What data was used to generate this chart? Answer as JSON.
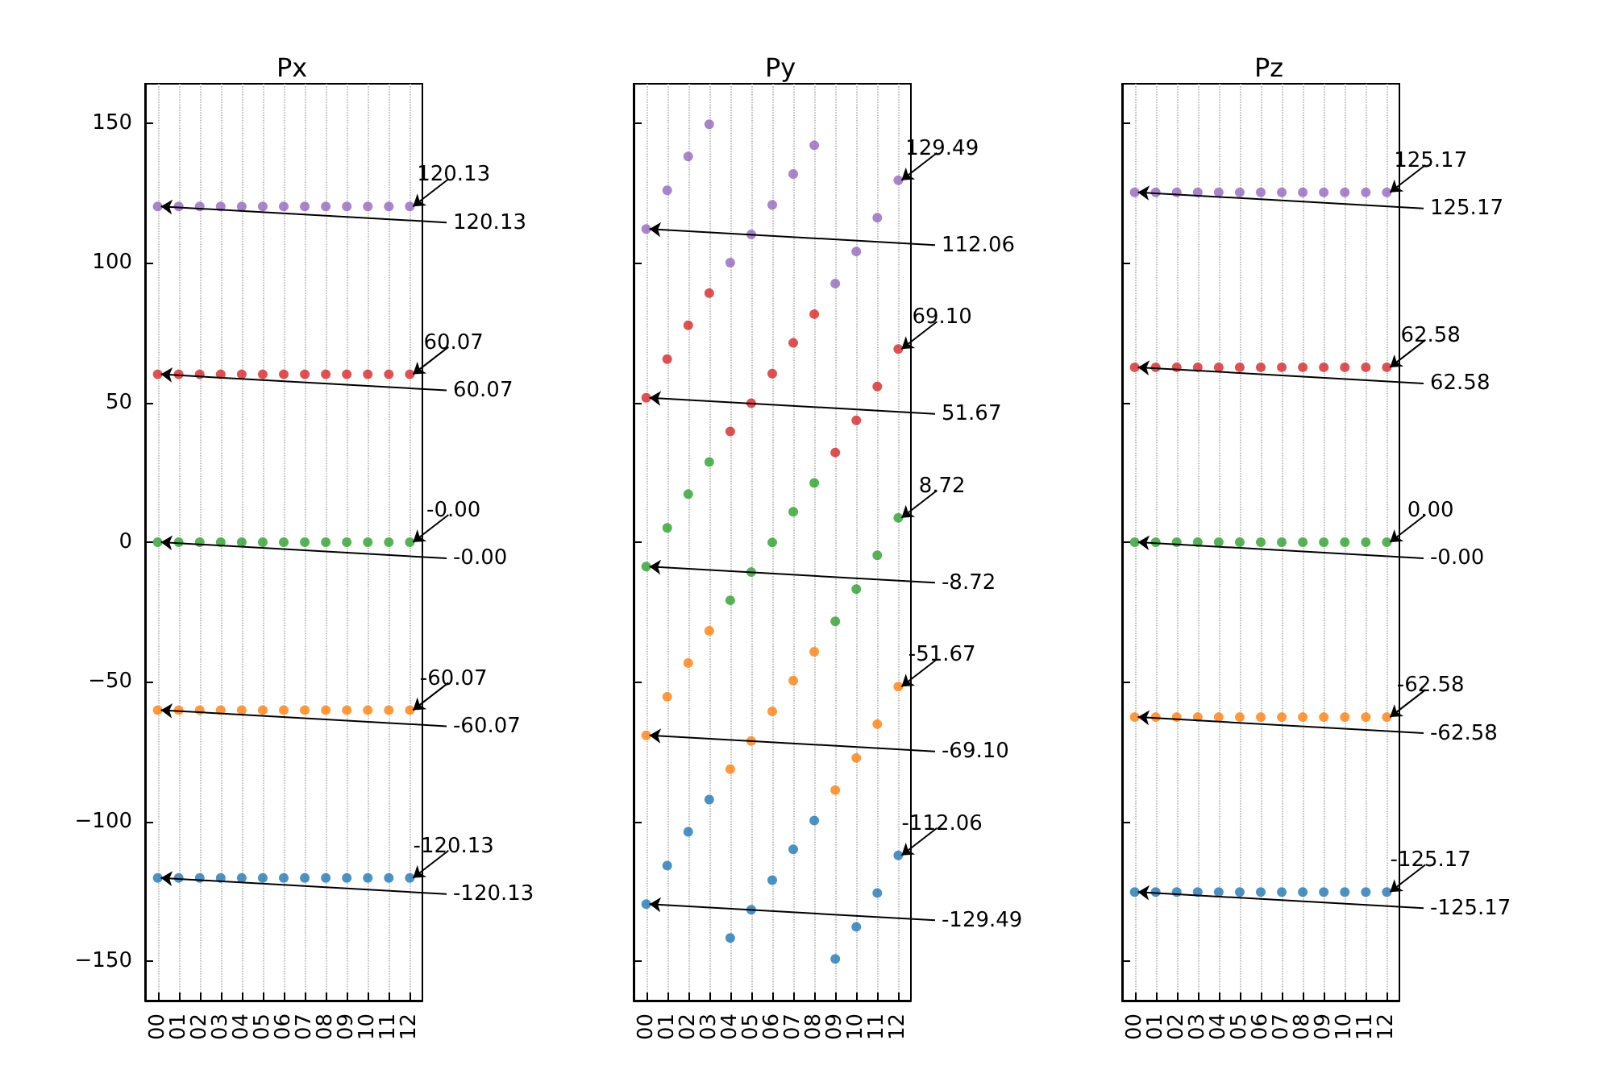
{
  "chart_data": [
    {
      "type": "scatter",
      "title": "Px",
      "categories": [
        "00",
        "01",
        "02",
        "03",
        "04",
        "05",
        "06",
        "07",
        "08",
        "09",
        "10",
        "11",
        "12"
      ],
      "ylim": [
        -164,
        164
      ],
      "yticks": [
        -150,
        -100,
        -50,
        0,
        50,
        100,
        150
      ],
      "grid": "x",
      "marker": "circle",
      "series": [
        {
          "color": "#1f77b4",
          "values": [
            -120.13,
            -120.13,
            -120.13,
            -120.13,
            -120.13,
            -120.13,
            -120.13,
            -120.13,
            -120.13,
            -120.13,
            -120.13,
            -120.13,
            -120.13
          ]
        },
        {
          "color": "#ff7f0e",
          "values": [
            -60.07,
            -60.07,
            -60.07,
            -60.07,
            -60.07,
            -60.07,
            -60.07,
            -60.07,
            -60.07,
            -60.07,
            -60.07,
            -60.07,
            -60.07
          ]
        },
        {
          "color": "#2ca02c",
          "values": [
            0,
            0,
            0,
            0,
            0,
            0,
            0,
            0,
            0,
            0,
            0,
            0,
            0
          ]
        },
        {
          "color": "#d62728",
          "values": [
            60.07,
            60.07,
            60.07,
            60.07,
            60.07,
            60.07,
            60.07,
            60.07,
            60.07,
            60.07,
            60.07,
            60.07,
            60.07
          ]
        },
        {
          "color": "#9467bd",
          "values": [
            120.13,
            120.13,
            120.13,
            120.13,
            120.13,
            120.13,
            120.13,
            120.13,
            120.13,
            120.13,
            120.13,
            120.13,
            120.13
          ]
        }
      ],
      "annotations": [
        {
          "text": "-120.13",
          "x": "12",
          "y": -120.13
        },
        {
          "text": "-120.13",
          "x": "00",
          "y": -120.13
        },
        {
          "text": "-60.07",
          "x": "12",
          "y": -60.07
        },
        {
          "text": "-60.07",
          "x": "00",
          "y": -60.07
        },
        {
          "text": "-0.00",
          "x": "12",
          "y": 0
        },
        {
          "text": "-0.00",
          "x": "00",
          "y": 0
        },
        {
          "text": "60.07",
          "x": "12",
          "y": 60.07
        },
        {
          "text": "60.07",
          "x": "00",
          "y": 60.07
        },
        {
          "text": "120.13",
          "x": "12",
          "y": 120.13
        },
        {
          "text": "120.13",
          "x": "00",
          "y": 120.13
        }
      ]
    },
    {
      "type": "scatter",
      "title": "Py",
      "categories": [
        "00",
        "01",
        "02",
        "03",
        "04",
        "05",
        "06",
        "07",
        "08",
        "09",
        "10",
        "11",
        "12"
      ],
      "ylim": [
        -164,
        164
      ],
      "yticks": [
        -150,
        -100,
        -50,
        0,
        50,
        100,
        150
      ],
      "grid": "x",
      "marker": "circle",
      "tick_labels": "x",
      "series": [
        {
          "color": "#1f77b4",
          "values": [
            -129.49,
            -115.7,
            -103.6,
            -92.1,
            -141.6,
            -131.5,
            -120.9,
            -109.9,
            -99.6,
            -149.1,
            -137.6,
            -125.5,
            -112.06
          ]
        },
        {
          "color": "#ff7f0e",
          "values": [
            -69.1,
            -55.3,
            -43.2,
            -31.7,
            -81.2,
            -71.1,
            -60.5,
            -49.5,
            -39.2,
            -88.7,
            -77.2,
            -65.1,
            -51.67
          ]
        },
        {
          "color": "#2ca02c",
          "values": [
            -8.72,
            5.1,
            17.2,
            28.7,
            -20.8,
            -10.7,
            -0.1,
            10.9,
            21.2,
            -28.3,
            -16.8,
            -4.7,
            8.72
          ]
        },
        {
          "color": "#d62728",
          "values": [
            51.67,
            65.5,
            77.6,
            89.1,
            39.6,
            49.7,
            60.3,
            71.3,
            81.6,
            32.1,
            43.6,
            55.7,
            69.1
          ]
        },
        {
          "color": "#9467bd",
          "values": [
            112.06,
            125.9,
            138.0,
            149.5,
            100.0,
            110.1,
            120.7,
            131.7,
            142.0,
            92.5,
            104.0,
            116.1,
            129.49
          ]
        }
      ],
      "annotations": [
        {
          "text": "-112.06",
          "x": "12",
          "y": -112.06
        },
        {
          "text": "-129.49",
          "x": "00",
          "y": -129.49
        },
        {
          "text": "-51.67",
          "x": "12",
          "y": -51.67
        },
        {
          "text": "-69.10",
          "x": "00",
          "y": -69.1
        },
        {
          "text": "8.72",
          "x": "12",
          "y": 8.72
        },
        {
          "text": "-8.72",
          "x": "00",
          "y": -8.72
        },
        {
          "text": "69.10",
          "x": "12",
          "y": 69.1
        },
        {
          "text": "51.67",
          "x": "00",
          "y": 51.67
        },
        {
          "text": "129.49",
          "x": "12",
          "y": 129.49
        },
        {
          "text": "112.06",
          "x": "00",
          "y": 112.06
        }
      ]
    },
    {
      "type": "scatter",
      "title": "Pz",
      "categories": [
        "00",
        "01",
        "02",
        "03",
        "04",
        "05",
        "06",
        "07",
        "08",
        "09",
        "10",
        "11",
        "12"
      ],
      "ylim": [
        -164,
        164
      ],
      "yticks": [
        -150,
        -100,
        -50,
        0,
        50,
        100,
        150
      ],
      "grid": "x",
      "marker": "circle",
      "tick_labels": "x",
      "series": [
        {
          "color": "#1f77b4",
          "values": [
            -125.17,
            -125.17,
            -125.17,
            -125.17,
            -125.17,
            -125.17,
            -125.17,
            -125.17,
            -125.17,
            -125.17,
            -125.17,
            -125.17,
            -125.17
          ]
        },
        {
          "color": "#ff7f0e",
          "values": [
            -62.58,
            -62.58,
            -62.58,
            -62.58,
            -62.58,
            -62.58,
            -62.58,
            -62.58,
            -62.58,
            -62.58,
            -62.58,
            -62.58,
            -62.58
          ]
        },
        {
          "color": "#2ca02c",
          "values": [
            0,
            0,
            0,
            0,
            0,
            0,
            0,
            0,
            0,
            0,
            0,
            0,
            0
          ]
        },
        {
          "color": "#d62728",
          "values": [
            62.58,
            62.58,
            62.58,
            62.58,
            62.58,
            62.58,
            62.58,
            62.58,
            62.58,
            62.58,
            62.58,
            62.58,
            62.58
          ]
        },
        {
          "color": "#9467bd",
          "values": [
            125.17,
            125.17,
            125.17,
            125.17,
            125.17,
            125.17,
            125.17,
            125.17,
            125.17,
            125.17,
            125.17,
            125.17,
            125.17
          ]
        }
      ],
      "annotations": [
        {
          "text": "-125.17",
          "x": "12",
          "y": -125.17
        },
        {
          "text": "-125.17",
          "x": "00",
          "y": -125.17
        },
        {
          "text": "-62.58",
          "x": "12",
          "y": -62.58
        },
        {
          "text": "-62.58",
          "x": "00",
          "y": -62.58
        },
        {
          "text": "0.00",
          "x": "12",
          "y": 0
        },
        {
          "text": "-0.00",
          "x": "00",
          "y": 0
        },
        {
          "text": "62.58",
          "x": "12",
          "y": 62.58
        },
        {
          "text": "62.58",
          "x": "00",
          "y": 62.58
        },
        {
          "text": "125.17",
          "x": "12",
          "y": 125.17
        },
        {
          "text": "125.17",
          "x": "00",
          "y": 125.17
        }
      ]
    }
  ]
}
